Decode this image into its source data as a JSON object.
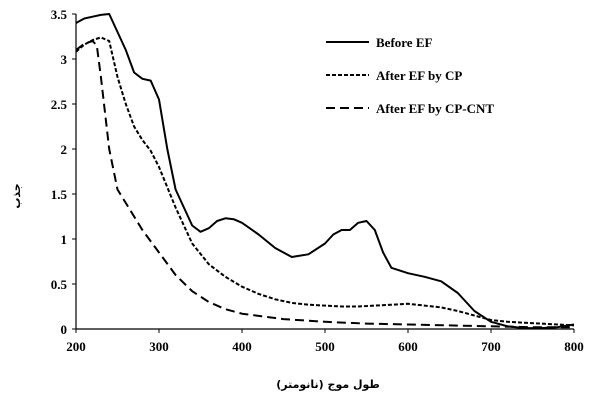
{
  "chart_data": {
    "type": "line",
    "title": "",
    "xlabel": "طول موج (نانومتر)",
    "ylabel": "جذب",
    "xlim": [
      200,
      800
    ],
    "ylim": [
      0,
      3.5
    ],
    "grid": false,
    "legend_position": "top-right",
    "x_ticks": [
      "200",
      "300",
      "400",
      "500",
      "600",
      "700",
      "800"
    ],
    "y_ticks": [
      "0",
      "0.5",
      "1",
      "1.5",
      "2",
      "2.5",
      "3",
      "3.5"
    ],
    "series": [
      {
        "name": "Before EF",
        "style": "solid",
        "color": "#000000",
        "x": [
          200,
          210,
          220,
          230,
          240,
          250,
          260,
          270,
          280,
          290,
          300,
          310,
          320,
          330,
          340,
          350,
          360,
          370,
          380,
          390,
          400,
          420,
          440,
          460,
          480,
          500,
          510,
          520,
          530,
          540,
          550,
          560,
          570,
          580,
          600,
          620,
          640,
          660,
          680,
          700,
          720,
          740,
          760,
          780,
          800
        ],
        "y": [
          3.4,
          3.45,
          3.47,
          3.49,
          3.5,
          3.3,
          3.1,
          2.85,
          2.78,
          2.76,
          2.55,
          2.0,
          1.55,
          1.35,
          1.15,
          1.08,
          1.12,
          1.2,
          1.23,
          1.22,
          1.18,
          1.05,
          0.9,
          0.8,
          0.83,
          0.95,
          1.05,
          1.1,
          1.1,
          1.18,
          1.2,
          1.1,
          0.85,
          0.68,
          0.62,
          0.58,
          0.53,
          0.4,
          0.2,
          0.08,
          0.03,
          0.01,
          0.01,
          0.02,
          0.05
        ]
      },
      {
        "name": "After EF by CP",
        "style": "dotted",
        "color": "#000000",
        "x": [
          200,
          210,
          220,
          230,
          240,
          250,
          260,
          270,
          280,
          290,
          300,
          320,
          340,
          360,
          380,
          400,
          420,
          440,
          460,
          480,
          500,
          520,
          540,
          560,
          580,
          600,
          620,
          640,
          660,
          680,
          700,
          720,
          740,
          760,
          780,
          800
        ],
        "y": [
          3.08,
          3.16,
          3.21,
          3.24,
          3.2,
          2.8,
          2.5,
          2.25,
          2.1,
          1.98,
          1.8,
          1.35,
          0.95,
          0.72,
          0.58,
          0.47,
          0.39,
          0.33,
          0.29,
          0.27,
          0.26,
          0.25,
          0.25,
          0.26,
          0.27,
          0.28,
          0.26,
          0.24,
          0.2,
          0.15,
          0.1,
          0.08,
          0.07,
          0.06,
          0.05,
          0.04
        ]
      },
      {
        "name": "After EF by CP-CNT",
        "style": "dashed",
        "color": "#000000",
        "x": [
          200,
          210,
          220,
          225,
          230,
          240,
          250,
          260,
          280,
          300,
          320,
          340,
          360,
          380,
          400,
          450,
          500,
          550,
          600,
          650,
          700,
          750,
          800
        ],
        "y": [
          3.1,
          3.17,
          3.2,
          3.15,
          2.8,
          2.0,
          1.55,
          1.4,
          1.1,
          0.85,
          0.6,
          0.42,
          0.3,
          0.22,
          0.17,
          0.11,
          0.08,
          0.06,
          0.05,
          0.04,
          0.03,
          0.02,
          0.02
        ]
      }
    ]
  }
}
